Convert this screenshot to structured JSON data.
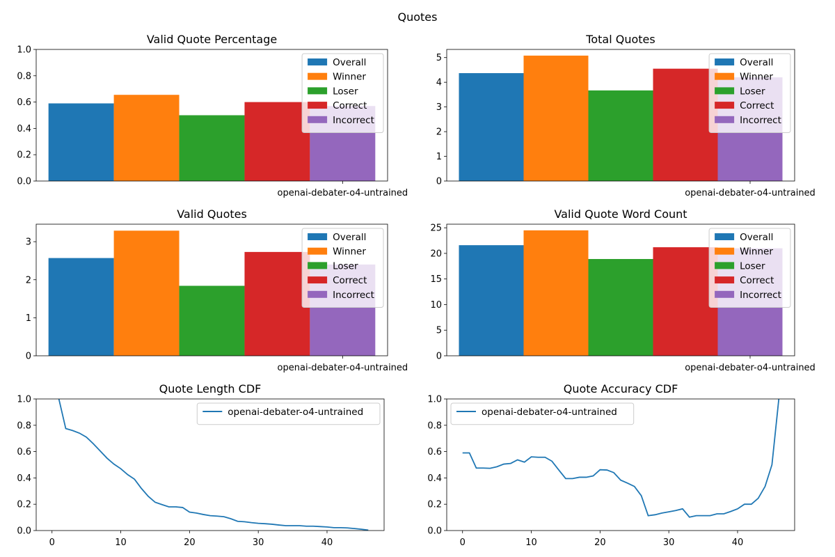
{
  "figure": {
    "title": "Quotes"
  },
  "colors": {
    "Overall": "#1f77b4",
    "Winner": "#ff7f0e",
    "Loser": "#2ca02c",
    "Correct": "#d62728",
    "Incorrect": "#9467bd",
    "line": "#1f77b4"
  },
  "chart_data": [
    {
      "id": "vqp",
      "type": "bar",
      "title": "Valid Quote Percentage",
      "categories": [
        "openai-debater-o4-untrained"
      ],
      "series": [
        {
          "name": "Overall",
          "values": [
            0.59
          ]
        },
        {
          "name": "Winner",
          "values": [
            0.655
          ]
        },
        {
          "name": "Loser",
          "values": [
            0.5
          ]
        },
        {
          "name": "Correct",
          "values": [
            0.6
          ]
        },
        {
          "name": "Incorrect",
          "values": [
            0.57
          ]
        }
      ],
      "ylim": [
        0,
        1.0
      ],
      "yticks": [
        "0.0",
        "0.2",
        "0.4",
        "0.6",
        "0.8",
        "1.0"
      ],
      "ytick_values": [
        0,
        0.2,
        0.4,
        0.6,
        0.8,
        1.0
      ],
      "legend": "upper right"
    },
    {
      "id": "tq",
      "type": "bar",
      "title": "Total Quotes",
      "categories": [
        "openai-debater-o4-untrained"
      ],
      "series": [
        {
          "name": "Overall",
          "values": [
            4.37
          ]
        },
        {
          "name": "Winner",
          "values": [
            5.08
          ]
        },
        {
          "name": "Loser",
          "values": [
            3.67
          ]
        },
        {
          "name": "Correct",
          "values": [
            4.55
          ]
        },
        {
          "name": "Incorrect",
          "values": [
            4.2
          ]
        }
      ],
      "ylim": [
        0,
        5.33
      ],
      "yticks": [
        "0",
        "1",
        "2",
        "3",
        "4",
        "5"
      ],
      "ytick_values": [
        0,
        1,
        2,
        3,
        4,
        5
      ],
      "legend": "upper right"
    },
    {
      "id": "vq",
      "type": "bar",
      "title": "Valid Quotes",
      "categories": [
        "openai-debater-o4-untrained"
      ],
      "series": [
        {
          "name": "Overall",
          "values": [
            2.57
          ]
        },
        {
          "name": "Winner",
          "values": [
            3.29
          ]
        },
        {
          "name": "Loser",
          "values": [
            1.84
          ]
        },
        {
          "name": "Correct",
          "values": [
            2.73
          ]
        },
        {
          "name": "Incorrect",
          "values": [
            2.4
          ]
        }
      ],
      "ylim": [
        0,
        3.46
      ],
      "yticks": [
        "0",
        "1",
        "2",
        "3"
      ],
      "ytick_values": [
        0,
        1,
        2,
        3
      ],
      "legend": "upper right"
    },
    {
      "id": "vqwc",
      "type": "bar",
      "title": "Valid Quote Word Count",
      "categories": [
        "openai-debater-o4-untrained"
      ],
      "series": [
        {
          "name": "Overall",
          "values": [
            21.6
          ]
        },
        {
          "name": "Winner",
          "values": [
            24.5
          ]
        },
        {
          "name": "Loser",
          "values": [
            18.9
          ]
        },
        {
          "name": "Correct",
          "values": [
            21.2
          ]
        },
        {
          "name": "Incorrect",
          "values": [
            21.0
          ]
        }
      ],
      "ylim": [
        0,
        25.7
      ],
      "yticks": [
        "0",
        "5",
        "10",
        "15",
        "20",
        "25"
      ],
      "ytick_values": [
        0,
        5,
        10,
        15,
        20,
        25
      ],
      "legend": "upper right"
    },
    {
      "id": "qlcdf",
      "type": "line",
      "title": "Quote Length CDF",
      "series": [
        {
          "name": "openai-debater-o4-untrained",
          "x": [
            1,
            2,
            3,
            4,
            5,
            6,
            7,
            8,
            9,
            10,
            11,
            12,
            13,
            14,
            15,
            16,
            17,
            18,
            19,
            20,
            21,
            22,
            23,
            24,
            25,
            26,
            27,
            28,
            29,
            30,
            31,
            32,
            33,
            34,
            35,
            36,
            37,
            38,
            39,
            40,
            41,
            42,
            43,
            44,
            45,
            46
          ],
          "y": [
            1.0,
            0.775,
            0.76,
            0.74,
            0.71,
            0.66,
            0.605,
            0.55,
            0.505,
            0.47,
            0.425,
            0.39,
            0.32,
            0.26,
            0.215,
            0.197,
            0.18,
            0.18,
            0.175,
            0.14,
            0.133,
            0.122,
            0.113,
            0.11,
            0.105,
            0.09,
            0.07,
            0.067,
            0.06,
            0.055,
            0.052,
            0.048,
            0.042,
            0.037,
            0.037,
            0.037,
            0.033,
            0.033,
            0.03,
            0.027,
            0.022,
            0.022,
            0.02,
            0.015,
            0.01,
            0.003
          ]
        }
      ],
      "xlim": [
        -2.3,
        48.3
      ],
      "ylim": [
        0,
        1.0
      ],
      "xticks": [
        "0",
        "10",
        "20",
        "30",
        "40"
      ],
      "xtick_values": [
        0,
        10,
        20,
        30,
        40
      ],
      "yticks": [
        "0.0",
        "0.2",
        "0.4",
        "0.6",
        "0.8",
        "1.0"
      ],
      "ytick_values": [
        0,
        0.2,
        0.4,
        0.6,
        0.8,
        1.0
      ],
      "legend": "upper right"
    },
    {
      "id": "qacdf",
      "type": "line",
      "title": "Quote Accuracy CDF",
      "series": [
        {
          "name": "openai-debater-o4-untrained",
          "x": [
            0,
            1,
            2,
            3,
            4,
            5,
            6,
            7,
            8,
            9,
            10,
            11,
            12,
            13,
            14,
            15,
            16,
            17,
            18,
            19,
            20,
            21,
            22,
            23,
            24,
            25,
            26,
            27,
            28,
            29,
            30,
            31,
            32,
            33,
            34,
            35,
            36,
            37,
            38,
            39,
            40,
            41,
            42,
            43,
            44,
            45,
            46
          ],
          "y": [
            0.59,
            0.59,
            0.475,
            0.475,
            0.473,
            0.485,
            0.505,
            0.51,
            0.537,
            0.52,
            0.56,
            0.557,
            0.557,
            0.527,
            0.46,
            0.395,
            0.395,
            0.405,
            0.405,
            0.415,
            0.462,
            0.46,
            0.44,
            0.383,
            0.36,
            0.335,
            0.265,
            0.113,
            0.12,
            0.133,
            0.142,
            0.152,
            0.165,
            0.102,
            0.113,
            0.113,
            0.113,
            0.127,
            0.127,
            0.145,
            0.165,
            0.2,
            0.2,
            0.245,
            0.335,
            0.5,
            1.0
          ]
        }
      ],
      "xlim": [
        -2.3,
        48.3
      ],
      "ylim": [
        0,
        1.0
      ],
      "xticks": [
        "0",
        "10",
        "20",
        "30",
        "40"
      ],
      "xtick_values": [
        0,
        10,
        20,
        30,
        40
      ],
      "yticks": [
        "0.0",
        "0.2",
        "0.4",
        "0.6",
        "0.8",
        "1.0"
      ],
      "ytick_values": [
        0,
        0.2,
        0.4,
        0.6,
        0.8,
        1.0
      ],
      "legend": "upper left"
    }
  ]
}
